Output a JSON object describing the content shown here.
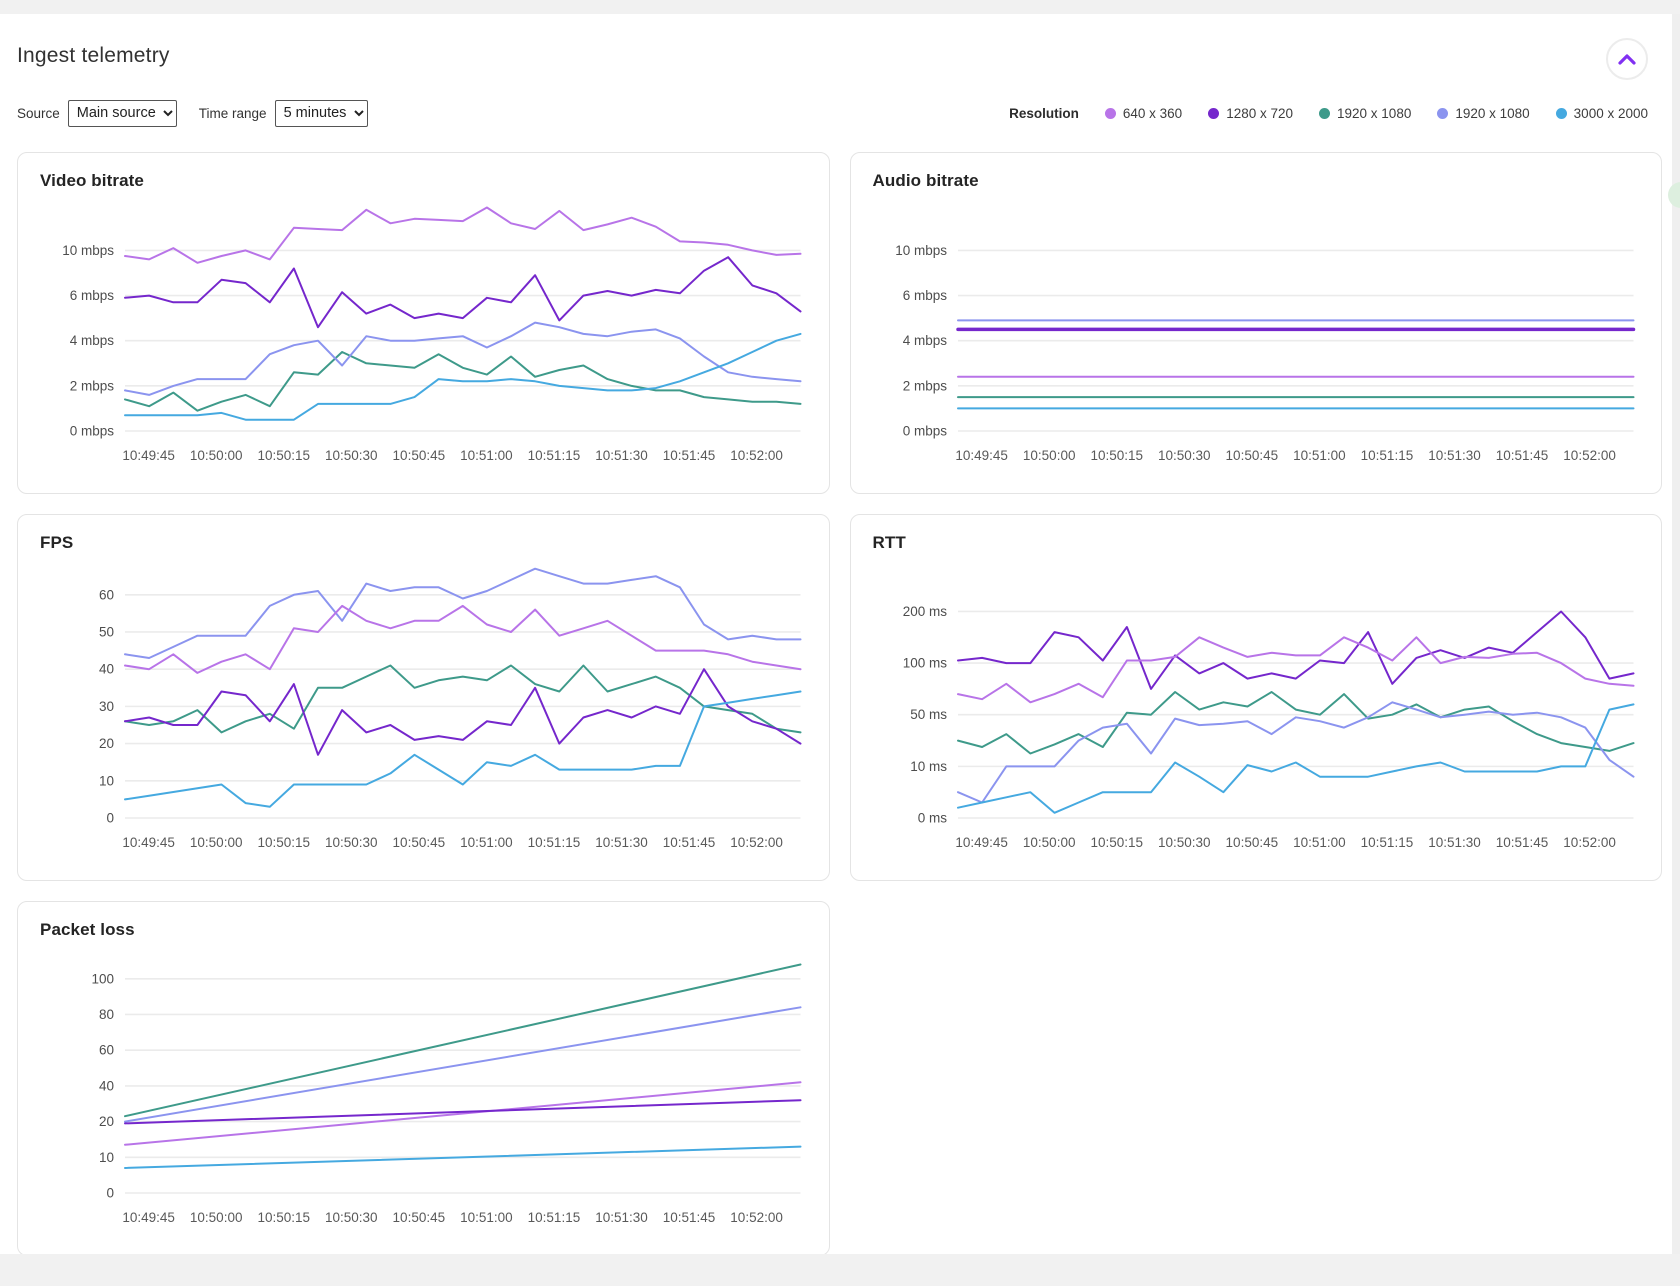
{
  "header": {
    "title": "Ingest telemetry"
  },
  "controls": {
    "source_label": "Source",
    "source_value": "Main source",
    "time_range_label": "Time range",
    "time_range_value": "5 minutes"
  },
  "legend": {
    "label": "Resolution",
    "items": [
      {
        "label": "640 x 360",
        "color": "#b874e8"
      },
      {
        "label": "1280 x 720",
        "color": "#7527cc"
      },
      {
        "label": "1920 x 1080",
        "color": "#3e9a8a"
      },
      {
        "label": "1920 x 1080",
        "color": "#8b94ef"
      },
      {
        "label": "3000 x 2000",
        "color": "#45a9e0"
      }
    ]
  },
  "colors": {
    "gridline": "#ebebeb",
    "tick_text": "#4d4d4d",
    "xlabel_text": "#595959",
    "accent_purple": "#8130f2"
  },
  "chart_data": [
    {
      "type": "line",
      "title": "Video bitrate",
      "unit": "mbps",
      "y_ticks": [
        0,
        2,
        4,
        6,
        10
      ],
      "headroom": 1.05,
      "x_labels": [
        "10:49:45",
        "10:50:00",
        "10:50:15",
        "10:50:30",
        "10:50:45",
        "10:51:00",
        "10:51:15",
        "10:51:30",
        "10:51:45",
        "10:52:00"
      ],
      "series": [
        {
          "name": "640 x 360",
          "color": "#b874e8",
          "values": [
            9.5,
            9.2,
            10.2,
            8.9,
            9.5,
            10.0,
            9.2,
            12.0,
            11.9,
            11.8,
            13.6,
            12.4,
            12.8,
            12.7,
            12.6,
            13.8,
            12.4,
            11.9,
            13.5,
            11.8,
            12.3,
            12.9,
            12.1,
            10.8,
            10.7,
            10.5,
            10.0,
            9.6,
            9.7
          ]
        },
        {
          "name": "1280 x 720",
          "color": "#7527cc",
          "values": [
            5.9,
            6.0,
            5.7,
            5.7,
            7.4,
            7.1,
            5.7,
            8.4,
            4.6,
            6.3,
            5.2,
            5.6,
            5.0,
            5.2,
            5.0,
            5.9,
            5.7,
            7.8,
            4.9,
            6.0,
            6.4,
            6.0,
            6.5,
            6.2,
            8.2,
            9.4,
            6.9,
            6.2,
            5.3
          ]
        },
        {
          "name": "1920 x 1080",
          "color": "#3e9a8a",
          "values": [
            1.4,
            1.1,
            1.7,
            0.9,
            1.3,
            1.6,
            1.1,
            2.6,
            2.5,
            3.5,
            3.0,
            2.9,
            2.8,
            3.4,
            2.8,
            2.5,
            3.3,
            2.4,
            2.7,
            2.9,
            2.3,
            2.0,
            1.8,
            1.8,
            1.5,
            1.4,
            1.3,
            1.3,
            1.2
          ]
        },
        {
          "name": "1920 x 1080",
          "color": "#8b94ef",
          "values": [
            1.8,
            1.6,
            2.0,
            2.3,
            2.3,
            2.3,
            3.4,
            3.8,
            4.0,
            2.9,
            4.2,
            4.0,
            4.0,
            4.1,
            4.2,
            3.7,
            4.2,
            4.8,
            4.6,
            4.3,
            4.2,
            4.4,
            4.5,
            4.1,
            3.3,
            2.6,
            2.4,
            2.3,
            2.2
          ]
        },
        {
          "name": "3000 x 2000",
          "color": "#45a9e0",
          "values": [
            0.7,
            0.7,
            0.7,
            0.7,
            0.8,
            0.5,
            0.5,
            0.5,
            1.2,
            1.2,
            1.2,
            1.2,
            1.5,
            2.3,
            2.2,
            2.2,
            2.3,
            2.2,
            2.0,
            1.9,
            1.8,
            1.8,
            1.9,
            2.2,
            2.6,
            3.0,
            3.5,
            4.0,
            4.3
          ]
        }
      ]
    },
    {
      "type": "line",
      "title": "Audio bitrate",
      "unit": "mbps",
      "y_ticks": [
        0,
        2,
        4,
        6,
        10
      ],
      "headroom": 1.05,
      "x_labels": [
        "10:49:45",
        "10:50:00",
        "10:50:15",
        "10:50:30",
        "10:50:45",
        "10:51:00",
        "10:51:15",
        "10:51:30",
        "10:51:45",
        "10:52:00"
      ],
      "series": [
        {
          "name": "1920 x 1080",
          "color": "#8b94ef",
          "values": [
            4.9,
            4.9
          ]
        },
        {
          "name": "1280 x 720",
          "color": "#7527cc",
          "width": 3.5,
          "values": [
            4.5,
            4.5
          ]
        },
        {
          "name": "640 x 360",
          "color": "#b874e8",
          "values": [
            2.4,
            2.4
          ]
        },
        {
          "name": "1920 x 1080",
          "color": "#3e9a8a",
          "values": [
            1.5,
            1.5
          ]
        },
        {
          "name": "3000 x 2000",
          "color": "#45a9e0",
          "values": [
            1.0,
            1.0
          ]
        }
      ]
    },
    {
      "type": "line",
      "title": "FPS",
      "unit": "",
      "y_ticks": [
        0,
        10,
        20,
        30,
        40,
        50,
        60
      ],
      "headroom": 0.8,
      "x_labels": [
        "10:49:45",
        "10:50:00",
        "10:50:15",
        "10:50:30",
        "10:50:45",
        "10:51:00",
        "10:51:15",
        "10:51:30",
        "10:51:45",
        "10:52:00"
      ],
      "series": [
        {
          "name": "1920 x 1080",
          "color": "#8b94ef",
          "values": [
            44,
            43,
            46,
            49,
            49,
            49,
            57,
            60,
            61,
            53,
            63,
            61,
            62,
            62,
            59,
            61,
            64,
            67,
            65,
            63,
            63,
            64,
            65,
            62,
            52,
            48,
            49,
            48,
            48
          ]
        },
        {
          "name": "640 x 360",
          "color": "#b874e8",
          "values": [
            41,
            40,
            44,
            39,
            42,
            44,
            40,
            51,
            50,
            57,
            53,
            51,
            53,
            53,
            57,
            52,
            50,
            56,
            49,
            51,
            53,
            49,
            45,
            45,
            45,
            44,
            42,
            41,
            40
          ]
        },
        {
          "name": "1920 x 1080",
          "color": "#3e9a8a",
          "values": [
            26,
            25,
            26,
            29,
            23,
            26,
            28,
            24,
            35,
            35,
            38,
            41,
            35,
            37,
            38,
            37,
            41,
            36,
            34,
            41,
            34,
            36,
            38,
            35,
            30,
            29,
            28,
            24,
            23
          ]
        },
        {
          "name": "1280 x 720",
          "color": "#7527cc",
          "values": [
            26,
            27,
            25,
            25,
            34,
            33,
            26,
            36,
            17,
            29,
            23,
            25,
            21,
            22,
            21,
            26,
            25,
            35,
            20,
            27,
            29,
            27,
            30,
            28,
            40,
            30,
            26,
            24,
            20
          ]
        },
        {
          "name": "3000 x 2000",
          "color": "#45a9e0",
          "values": [
            5,
            6,
            7,
            8,
            9,
            4,
            3,
            9,
            9,
            9,
            9,
            12,
            17,
            13,
            9,
            15,
            14,
            17,
            13,
            13,
            13,
            13,
            14,
            14,
            30,
            31,
            32,
            33,
            34
          ]
        }
      ]
    },
    {
      "type": "line",
      "title": "RTT",
      "unit": "ms",
      "y_ticks": [
        0,
        10,
        50,
        100,
        200
      ],
      "headroom": 0.9,
      "x_labels": [
        "10:49:45",
        "10:50:00",
        "10:50:15",
        "10:50:30",
        "10:50:45",
        "10:51:00",
        "10:51:15",
        "10:51:30",
        "10:51:45",
        "10:52:00"
      ],
      "series": [
        {
          "name": "1280 x 720",
          "color": "#7527cc",
          "values": [
            105,
            110,
            100,
            100,
            160,
            150,
            105,
            170,
            75,
            115,
            90,
            100,
            85,
            90,
            85,
            105,
            100,
            160,
            80,
            110,
            125,
            110,
            130,
            120,
            160,
            200,
            150,
            85,
            90
          ]
        },
        {
          "name": "640 x 360",
          "color": "#b874e8",
          "values": [
            70,
            65,
            80,
            62,
            70,
            80,
            67,
            105,
            105,
            112,
            150,
            130,
            112,
            120,
            115,
            115,
            150,
            130,
            105,
            150,
            100,
            112,
            110,
            118,
            120,
            100,
            85,
            80,
            78
          ]
        },
        {
          "name": "1920 x 1080",
          "color": "#3e9a8a",
          "values": [
            30,
            25,
            35,
            20,
            27,
            35,
            25,
            52,
            50,
            72,
            55,
            62,
            58,
            72,
            55,
            50,
            70,
            47,
            50,
            60,
            48,
            55,
            58,
            45,
            35,
            28,
            25,
            22,
            28
          ]
        },
        {
          "name": "1920 x 1080",
          "color": "#8b94ef",
          "values": [
            5,
            3,
            10,
            10,
            10,
            30,
            40,
            43,
            20,
            47,
            42,
            43,
            45,
            35,
            48,
            45,
            40,
            48,
            62,
            55,
            48,
            50,
            53,
            50,
            52,
            48,
            40,
            15,
            8
          ]
        },
        {
          "name": "3000 x 2000",
          "color": "#45a9e0",
          "values": [
            2,
            3,
            4,
            5,
            1,
            3,
            5,
            5,
            5,
            13,
            8,
            5,
            11,
            9,
            13,
            8,
            8,
            8,
            9,
            10,
            13,
            9,
            9,
            9,
            9,
            10,
            10,
            55,
            60
          ]
        }
      ]
    },
    {
      "type": "line",
      "title": "Packet loss",
      "unit": "",
      "y_ticks": [
        0,
        10,
        20,
        40,
        60,
        80,
        100
      ],
      "headroom": 0.75,
      "x_labels": [
        "10:49:45",
        "10:50:00",
        "10:50:15",
        "10:50:30",
        "10:50:45",
        "10:51:00",
        "10:51:15",
        "10:51:30",
        "10:51:45",
        "10:52:00"
      ],
      "series": [
        {
          "name": "1920 x 1080",
          "color": "#3e9a8a",
          "values": [
            23,
            108
          ]
        },
        {
          "name": "1920 x 1080",
          "color": "#8b94ef",
          "values": [
            20,
            84
          ]
        },
        {
          "name": "640 x 360",
          "color": "#b874e8",
          "values": [
            13.5,
            42
          ]
        },
        {
          "name": "1280 x 720",
          "color": "#7527cc",
          "values": [
            19.5,
            32
          ]
        },
        {
          "name": "3000 x 2000",
          "color": "#45a9e0",
          "values": [
            7,
            13
          ]
        }
      ]
    }
  ]
}
